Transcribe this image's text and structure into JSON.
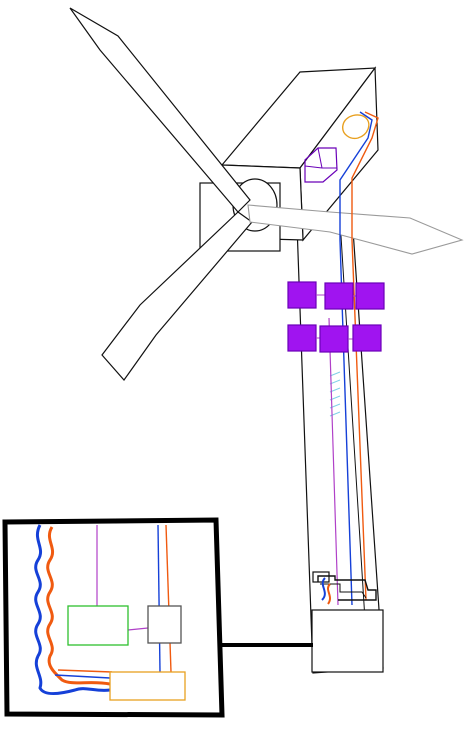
{
  "colors": {
    "outline": "#111111",
    "blade_light": "#9a9a9a",
    "module_fill": "#a014f0",
    "module_stroke": "#6a00b8",
    "cable_blue": "#1540d8",
    "cable_orange": "#f05a10",
    "magenta_line": "#b040c8",
    "green_box": "#2ec02e",
    "grey_box": "#555555",
    "yellow_box": "#e8a020",
    "accent_cyan": "#7fd0e8",
    "inset_border": "#000000"
  },
  "components": {
    "modules": {
      "rows": 2,
      "cols": 3
    },
    "nacelle_boxes": [
      "control-unit",
      "generator-unit"
    ],
    "inset_boxes": [
      "converter",
      "controller",
      "transformer"
    ],
    "cables": [
      "power-blue",
      "power-orange",
      "signal-magenta"
    ]
  }
}
